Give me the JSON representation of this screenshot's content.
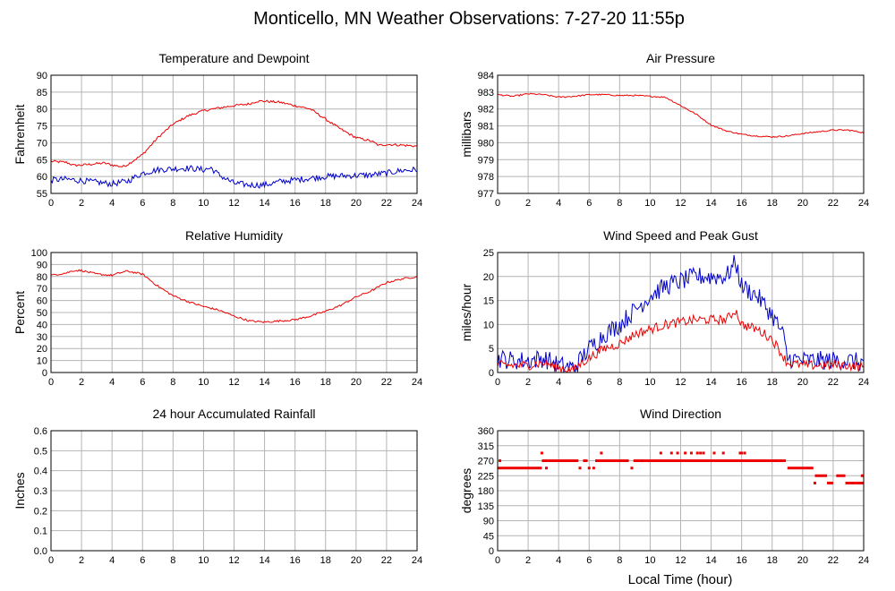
{
  "page_title": "Monticello, MN Weather Observations: 7-27-20 11:55p",
  "xlabel_bottom": "Local Time (hour)",
  "colors": {
    "red": "#ee0000",
    "blue": "#0000cc",
    "grid": "#b4b4b4",
    "frame": "#000000"
  },
  "chart_data": [
    {
      "id": "temp",
      "type": "line",
      "title": "Temperature and Dewpoint",
      "ylabel": "Fahrenheit",
      "xlim": [
        0,
        24
      ],
      "ylim": [
        55,
        90
      ],
      "xticks": [
        0,
        2,
        4,
        6,
        8,
        10,
        12,
        14,
        16,
        18,
        20,
        22,
        24
      ],
      "yticks": [
        55,
        60,
        65,
        70,
        75,
        80,
        85,
        90
      ],
      "grid": true,
      "series": [
        {
          "color": "red",
          "noise": 0.35,
          "points": [
            [
              0,
              64.5
            ],
            [
              1,
              64.2
            ],
            [
              1.5,
              63.3
            ],
            [
              2,
              63.4
            ],
            [
              3,
              63.8
            ],
            [
              3.5,
              64.0
            ],
            [
              4,
              63.4
            ],
            [
              4.7,
              62.9
            ],
            [
              5,
              63.5
            ],
            [
              6,
              66.5
            ],
            [
              7,
              71.5
            ],
            [
              8,
              75.5
            ],
            [
              9,
              78
            ],
            [
              10,
              79.5
            ],
            [
              11,
              80.3
            ],
            [
              12,
              81
            ],
            [
              13,
              81.5
            ],
            [
              13.5,
              82.3
            ],
            [
              14,
              82.3
            ],
            [
              15,
              82
            ],
            [
              16,
              81
            ],
            [
              17,
              80
            ],
            [
              18,
              77
            ],
            [
              19,
              74
            ],
            [
              20,
              71.5
            ],
            [
              21,
              70.5
            ],
            [
              21.5,
              69.2
            ],
            [
              22,
              69.5
            ],
            [
              23,
              69.3
            ],
            [
              24,
              69
            ]
          ]
        },
        {
          "color": "blue",
          "noise": 0.9,
          "points": [
            [
              0,
              59
            ],
            [
              1,
              59.2
            ],
            [
              2,
              58.8
            ],
            [
              3,
              58.3
            ],
            [
              4,
              57.8
            ],
            [
              5,
              58.6
            ],
            [
              6,
              61
            ],
            [
              7,
              62
            ],
            [
              8,
              62.3
            ],
            [
              9,
              62.5
            ],
            [
              10,
              62
            ],
            [
              10.5,
              62.5
            ],
            [
              11,
              60.5
            ],
            [
              12,
              58
            ],
            [
              13,
              57.5
            ],
            [
              14,
              57.5
            ],
            [
              15,
              58.5
            ],
            [
              16,
              59
            ],
            [
              17,
              59.5
            ],
            [
              18,
              60
            ],
            [
              19,
              60.2
            ],
            [
              20,
              60.3
            ],
            [
              21,
              60.5
            ],
            [
              22,
              61
            ],
            [
              23,
              61.8
            ],
            [
              24,
              62
            ]
          ]
        }
      ]
    },
    {
      "id": "pressure",
      "type": "line",
      "title": "Air Pressure",
      "ylabel": "millibars",
      "xlim": [
        0,
        24
      ],
      "ylim": [
        977,
        984
      ],
      "xticks": [
        0,
        2,
        4,
        6,
        8,
        10,
        12,
        14,
        16,
        18,
        20,
        22,
        24
      ],
      "yticks": [
        977,
        978,
        979,
        980,
        981,
        982,
        983,
        984
      ],
      "grid": true,
      "series": [
        {
          "color": "red",
          "noise": 0.04,
          "points": [
            [
              0,
              982.85
            ],
            [
              1,
              982.75
            ],
            [
              2,
              982.9
            ],
            [
              3,
              982.85
            ],
            [
              4,
              982.7
            ],
            [
              5,
              982.75
            ],
            [
              6,
              982.85
            ],
            [
              7,
              982.85
            ],
            [
              8,
              982.8
            ],
            [
              9,
              982.8
            ],
            [
              10,
              982.75
            ],
            [
              11,
              982.7
            ],
            [
              12,
              982.2
            ],
            [
              13,
              981.7
            ],
            [
              14,
              981.05
            ],
            [
              15,
              980.7
            ],
            [
              16,
              980.5
            ],
            [
              17,
              980.4
            ],
            [
              18,
              980.35
            ],
            [
              19,
              980.4
            ],
            [
              20,
              980.55
            ],
            [
              21,
              980.65
            ],
            [
              22,
              980.75
            ],
            [
              23,
              980.75
            ],
            [
              24,
              980.6
            ]
          ]
        }
      ]
    },
    {
      "id": "humidity",
      "type": "line",
      "title": "Relative Humidity",
      "ylabel": "Percent",
      "xlim": [
        0,
        24
      ],
      "ylim": [
        0,
        100
      ],
      "xticks": [
        0,
        2,
        4,
        6,
        8,
        10,
        12,
        14,
        16,
        18,
        20,
        22,
        24
      ],
      "yticks": [
        0,
        10,
        20,
        30,
        40,
        50,
        60,
        70,
        80,
        90,
        100
      ],
      "grid": true,
      "series": [
        {
          "color": "red",
          "noise": 0.8,
          "points": [
            [
              0,
              81
            ],
            [
              1,
              83
            ],
            [
              1.5,
              85
            ],
            [
              2,
              85
            ],
            [
              3,
              82
            ],
            [
              4,
              81
            ],
            [
              4.5,
              83
            ],
            [
              5,
              84.5
            ],
            [
              6,
              82
            ],
            [
              7,
              72
            ],
            [
              8,
              64
            ],
            [
              9,
              59
            ],
            [
              10,
              55
            ],
            [
              11,
              52
            ],
            [
              12,
              47
            ],
            [
              13,
              43
            ],
            [
              14,
              42
            ],
            [
              15,
              43
            ],
            [
              16,
              44
            ],
            [
              17,
              47
            ],
            [
              18,
              51
            ],
            [
              19,
              56
            ],
            [
              20,
              63
            ],
            [
              21,
              68
            ],
            [
              22,
              75
            ],
            [
              23,
              78
            ],
            [
              24,
              80
            ]
          ]
        }
      ]
    },
    {
      "id": "wind",
      "type": "line",
      "title": "Wind Speed and Peak Gust",
      "ylabel": "miles/hour",
      "xlim": [
        0,
        24
      ],
      "ylim": [
        0,
        25
      ],
      "xticks": [
        0,
        2,
        4,
        6,
        8,
        10,
        12,
        14,
        16,
        18,
        20,
        22,
        24
      ],
      "yticks": [
        0,
        5,
        10,
        15,
        20,
        25
      ],
      "grid": true,
      "series": [
        {
          "color": "blue",
          "noise": 2.0,
          "points": [
            [
              0,
              3
            ],
            [
              1,
              2.5
            ],
            [
              2,
              2.5
            ],
            [
              3,
              3
            ],
            [
              4,
              1.5
            ],
            [
              5,
              1
            ],
            [
              6,
              5
            ],
            [
              7,
              8
            ],
            [
              8,
              10
            ],
            [
              9,
              13
            ],
            [
              10,
              16
            ],
            [
              11,
              18
            ],
            [
              12,
              19
            ],
            [
              13,
              20
            ],
            [
              14,
              20
            ],
            [
              15,
              20
            ],
            [
              15.6,
              23
            ],
            [
              16,
              18
            ],
            [
              17,
              16
            ],
            [
              18,
              12
            ],
            [
              18.7,
              8
            ],
            [
              19,
              3
            ],
            [
              20,
              2.5
            ],
            [
              21,
              2.5
            ],
            [
              22,
              2.5
            ],
            [
              23,
              2.5
            ],
            [
              24,
              2
            ]
          ]
        },
        {
          "color": "red",
          "noise": 1.0,
          "points": [
            [
              0,
              1.5
            ],
            [
              1,
              1.5
            ],
            [
              2,
              1.5
            ],
            [
              3,
              2
            ],
            [
              4,
              1
            ],
            [
              5,
              0.5
            ],
            [
              5.5,
              2
            ],
            [
              6,
              3
            ],
            [
              7,
              5
            ],
            [
              8,
              6
            ],
            [
              9,
              8
            ],
            [
              10,
              9
            ],
            [
              11,
              10
            ],
            [
              12,
              10.5
            ],
            [
              13,
              11
            ],
            [
              14,
              11
            ],
            [
              15,
              11
            ],
            [
              15.6,
              13
            ],
            [
              16,
              10
            ],
            [
              17,
              9
            ],
            [
              18,
              7
            ],
            [
              19,
              2
            ],
            [
              20,
              1.5
            ],
            [
              21,
              1.5
            ],
            [
              22,
              1.5
            ],
            [
              23,
              1.5
            ],
            [
              24,
              1
            ]
          ]
        }
      ]
    },
    {
      "id": "rain",
      "type": "line",
      "title": "24 hour Accumulated Rainfall",
      "ylabel": "Inches",
      "xlim": [
        0,
        24
      ],
      "ylim": [
        0,
        0.6
      ],
      "xticks": [
        0,
        2,
        4,
        6,
        8,
        10,
        12,
        14,
        16,
        18,
        20,
        22,
        24
      ],
      "yticks": [
        0.0,
        0.1,
        0.2,
        0.3,
        0.4,
        0.5,
        0.6
      ],
      "ytick_labels": [
        "0.0",
        "0.1",
        "0.2",
        "0.3",
        "0.4",
        "0.5",
        "0.6"
      ],
      "grid": true,
      "series": [
        {
          "color": "red",
          "noise": 0,
          "points": [
            [
              0,
              0
            ],
            [
              24,
              0
            ]
          ]
        }
      ]
    },
    {
      "id": "direction",
      "type": "scatter",
      "title": "Wind Direction",
      "ylabel": "degrees",
      "xlim": [
        0,
        24
      ],
      "ylim": [
        0,
        360
      ],
      "xticks": [
        0,
        2,
        4,
        6,
        8,
        10,
        12,
        14,
        16,
        18,
        20,
        22,
        24
      ],
      "yticks": [
        0,
        45,
        90,
        135,
        180,
        225,
        270,
        315,
        360
      ],
      "grid": true,
      "segments": [
        [
          0,
          2.9,
          248
        ],
        [
          2.9,
          3.3,
          270
        ],
        [
          3.3,
          5.3,
          270
        ],
        [
          5.6,
          5.9,
          270
        ],
        [
          6.4,
          8.6,
          270
        ],
        [
          8.9,
          18.9,
          270
        ],
        [
          19.0,
          20.7,
          248
        ],
        [
          20.8,
          21.6,
          225
        ],
        [
          21.6,
          22.0,
          203
        ],
        [
          22.2,
          22.8,
          225
        ],
        [
          22.8,
          24.0,
          203
        ]
      ],
      "points": [
        [
          0.15,
          270
        ],
        [
          2.9,
          293
        ],
        [
          3.2,
          248
        ],
        [
          5.4,
          248
        ],
        [
          6.0,
          248
        ],
        [
          6.3,
          248
        ],
        [
          6.8,
          293
        ],
        [
          8.8,
          248
        ],
        [
          10.7,
          293
        ],
        [
          11.4,
          293
        ],
        [
          11.8,
          293
        ],
        [
          12.3,
          293
        ],
        [
          12.7,
          293
        ],
        [
          13.1,
          293
        ],
        [
          13.3,
          293
        ],
        [
          13.5,
          293
        ],
        [
          14.2,
          293
        ],
        [
          14.8,
          293
        ],
        [
          15.9,
          293
        ],
        [
          16.0,
          293
        ],
        [
          16.2,
          293
        ],
        [
          20.8,
          203
        ],
        [
          21.7,
          203
        ],
        [
          23.9,
          225
        ]
      ]
    }
  ]
}
